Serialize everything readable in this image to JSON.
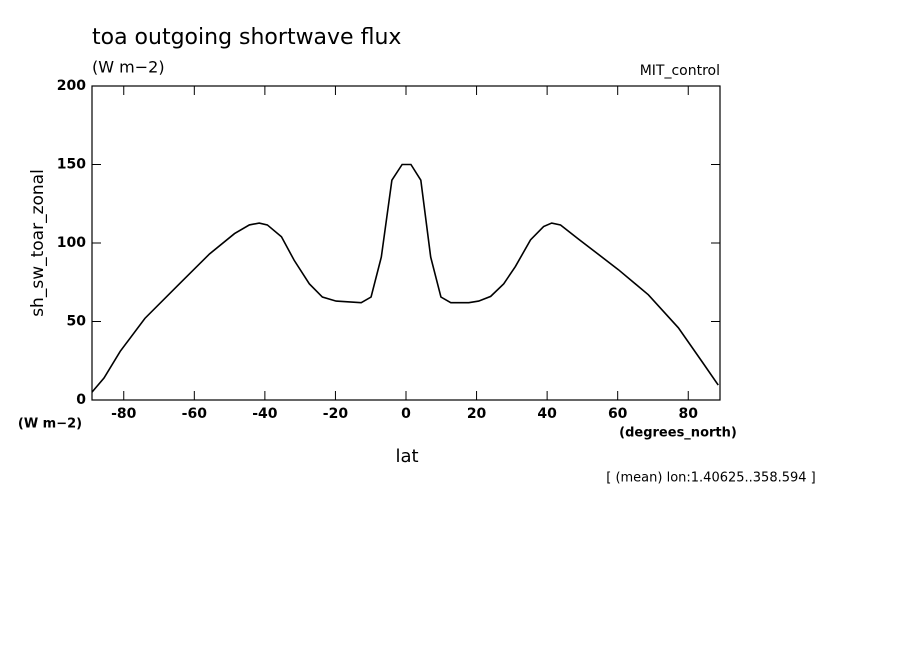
{
  "chart_data": {
    "type": "line",
    "title": "toa outgoing shortwave flux",
    "units": "(W m−2)",
    "run_label": "MIT_control",
    "ylabel": "sh_sw_toar_zonal",
    "y_units": "(W m−2)",
    "xlabel": "lat",
    "x_units": "(degrees_north)",
    "note": "[ (mean) lon:1.40625..358.594 ]",
    "xlim": [
      -89,
      89
    ],
    "ylim": [
      0,
      200
    ],
    "xticks": [
      -80,
      -60,
      -40,
      -20,
      0,
      20,
      40,
      60,
      80
    ],
    "yticks": [
      0,
      50,
      100,
      150,
      200
    ],
    "series": [
      {
        "color": "#000000",
        "x": [
          -89,
          -85.6,
          -81,
          -74,
          -64,
          -55.7,
          -48.6,
          -44.4,
          -41.6,
          -39.3,
          -35.3,
          -31.7,
          -27.4,
          -23.7,
          -19.8,
          -12.7,
          -9.9,
          -7,
          -4,
          -1.1,
          1.4,
          4.2,
          7,
          9.9,
          12.7,
          17.8,
          20.6,
          24,
          27.7,
          31,
          35.3,
          39,
          41.3,
          43.8,
          48.9,
          60.2,
          68.7,
          77.2,
          84.2,
          88.5
        ],
        "values": [
          5,
          14,
          31,
          52,
          74.5,
          93,
          106,
          111.5,
          112.7,
          111.5,
          104,
          89,
          74,
          65.6,
          63,
          62,
          65.6,
          91,
          140,
          150,
          150,
          140,
          91,
          65.6,
          62,
          62,
          63,
          66,
          74,
          85,
          102,
          110.5,
          112.7,
          111.5,
          102.5,
          83,
          67,
          46,
          23.5,
          9.5
        ]
      }
    ]
  }
}
